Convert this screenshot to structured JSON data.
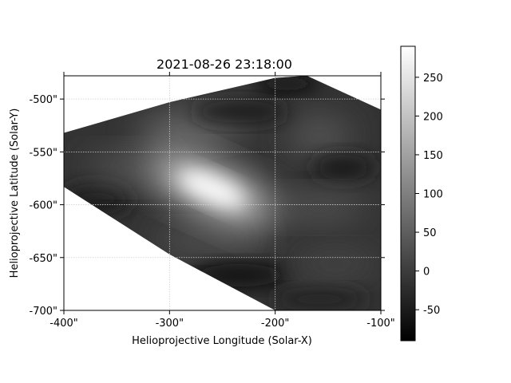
{
  "chart_data": {
    "type": "heatmap",
    "title": "2021-08-26 23:18:00",
    "xlabel": "Helioprojective Longitude (Solar-X)",
    "ylabel": "Helioprojective Latitude (Solar-Y)",
    "xlim": [
      -400,
      -100
    ],
    "ylim": [
      -700,
      -478
    ],
    "x_ticks": [
      {
        "value": -400,
        "label": "-400\""
      },
      {
        "value": -300,
        "label": "-300\""
      },
      {
        "value": -200,
        "label": "-200\""
      },
      {
        "value": -100,
        "label": "-100\""
      }
    ],
    "y_ticks": [
      {
        "value": -500,
        "label": "-500\""
      },
      {
        "value": -550,
        "label": "-550\""
      },
      {
        "value": -600,
        "label": "-600\""
      },
      {
        "value": -650,
        "label": "-650\""
      },
      {
        "value": -700,
        "label": "-700\""
      }
    ],
    "grid": true,
    "colormap": "gray",
    "colorbar": {
      "range": [
        -90,
        290
      ],
      "ticks": [
        {
          "value": 250,
          "label": "250"
        },
        {
          "value": 200,
          "label": "200"
        },
        {
          "value": 150,
          "label": "150"
        },
        {
          "value": 100,
          "label": "100"
        },
        {
          "value": 50,
          "label": "50"
        },
        {
          "value": 0,
          "label": "0"
        },
        {
          "value": -50,
          "label": "-50"
        }
      ]
    },
    "data_region": [
      {
        "x": -400,
        "y": -532
      },
      {
        "x": -300,
        "y": -503
      },
      {
        "x": -200,
        "y": -480
      },
      {
        "x": -170,
        "y": -478
      },
      {
        "x": -100,
        "y": -510
      },
      {
        "x": -100,
        "y": -700
      },
      {
        "x": -200,
        "y": -700
      },
      {
        "x": -300,
        "y": -647
      },
      {
        "x": -400,
        "y": -583
      }
    ],
    "features": [
      {
        "x": -260,
        "y": -585,
        "peak": 290,
        "label": "bright blob"
      }
    ]
  }
}
